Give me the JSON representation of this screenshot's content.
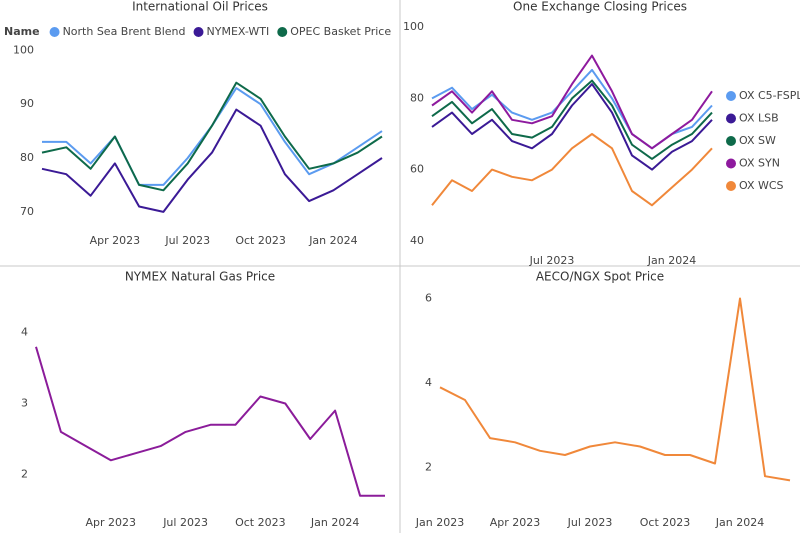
{
  "chart_data": [
    {
      "type": "line",
      "title": "International Oil Prices",
      "legend_title": "Name",
      "legend": "top",
      "categories": [
        null,
        null,
        null,
        "Apr 2023",
        null,
        null,
        "Jul 2023",
        null,
        null,
        "Oct 2023",
        null,
        null,
        "Jan 2024",
        null,
        null
      ],
      "series": [
        {
          "name": "North Sea Brent Blend",
          "color": "#5b9bf0",
          "values": [
            83,
            83,
            79,
            84,
            75,
            75,
            80,
            86,
            93,
            90,
            83,
            77,
            79,
            82,
            85
          ]
        },
        {
          "name": "NYMEX-WTI",
          "color": "#3b1a96",
          "values": [
            78,
            77,
            73,
            79,
            71,
            70,
            76,
            81,
            89,
            86,
            77,
            72,
            74,
            77,
            80
          ]
        },
        {
          "name": "OPEC Basket Price",
          "color": "#0e6a4a",
          "values": [
            81,
            82,
            78,
            84,
            75,
            74,
            79,
            86,
            94,
            91,
            84,
            78,
            79,
            81,
            84
          ]
        }
      ],
      "ylim": [
        67,
        101
      ],
      "yticks": [
        70,
        80,
        90,
        100
      ],
      "grid": false
    },
    {
      "type": "line",
      "title": "One Exchange Closing Prices",
      "legend": "right",
      "categories": [
        null,
        null,
        null,
        null,
        null,
        null,
        "Jul 2023",
        null,
        null,
        null,
        null,
        null,
        "Jan 2024",
        null,
        null
      ],
      "series": [
        {
          "name": "OX C5-FSPL",
          "color": "#5b9bf0",
          "values": [
            80,
            83,
            77,
            81,
            76,
            74,
            76,
            82,
            88,
            80,
            70,
            66,
            70,
            72,
            78
          ]
        },
        {
          "name": "OX LSB",
          "color": "#3b1a96",
          "values": [
            72,
            76,
            70,
            74,
            68,
            66,
            70,
            78,
            84,
            76,
            64,
            60,
            65,
            68,
            74
          ]
        },
        {
          "name": "OX SW",
          "color": "#0e6a4a",
          "values": [
            75,
            79,
            73,
            77,
            70,
            69,
            72,
            80,
            85,
            78,
            67,
            63,
            67,
            70,
            76
          ]
        },
        {
          "name": "OX SYN",
          "color": "#8e1a9e",
          "values": [
            78,
            82,
            76,
            82,
            74,
            73,
            75,
            84,
            92,
            82,
            70,
            66,
            70,
            74,
            82
          ]
        },
        {
          "name": "OX WCS",
          "color": "#f0883a",
          "values": [
            50,
            57,
            54,
            60,
            58,
            57,
            60,
            66,
            70,
            66,
            54,
            50,
            55,
            60,
            66
          ]
        }
      ],
      "ylim": [
        38,
        102
      ],
      "yticks": [
        40,
        60,
        80,
        100
      ],
      "grid": false
    },
    {
      "type": "line",
      "title": "NYMEX Natural Gas Price",
      "categories": [
        null,
        null,
        null,
        "Apr 2023",
        null,
        null,
        "Jul 2023",
        null,
        null,
        "Oct 2023",
        null,
        null,
        "Jan 2024",
        null,
        null
      ],
      "values": [
        3.8,
        2.6,
        2.4,
        2.2,
        2.3,
        2.4,
        2.6,
        2.7,
        2.7,
        3.1,
        3.0,
        2.5,
        2.9,
        1.7,
        1.7
      ],
      "color": "#8b1c9a",
      "ylim": [
        1.5,
        4.6
      ],
      "yticks": [
        2,
        3,
        4
      ],
      "grid": false
    },
    {
      "type": "line",
      "title": "AECO/NGX Spot Price",
      "categories": [
        "Jan 2023",
        null,
        null,
        "Apr 2023",
        null,
        null,
        "Jul 2023",
        null,
        null,
        "Oct 2023",
        null,
        null,
        "Jan 2024",
        null,
        null
      ],
      "values": [
        3.9,
        3.6,
        2.7,
        2.6,
        2.4,
        2.3,
        2.5,
        2.6,
        2.5,
        2.3,
        2.3,
        2.1,
        6.0,
        1.8,
        1.7
      ],
      "color": "#f0883a",
      "ylim": [
        1,
        6.2
      ],
      "yticks": [
        2,
        4,
        6
      ],
      "grid": false
    }
  ]
}
